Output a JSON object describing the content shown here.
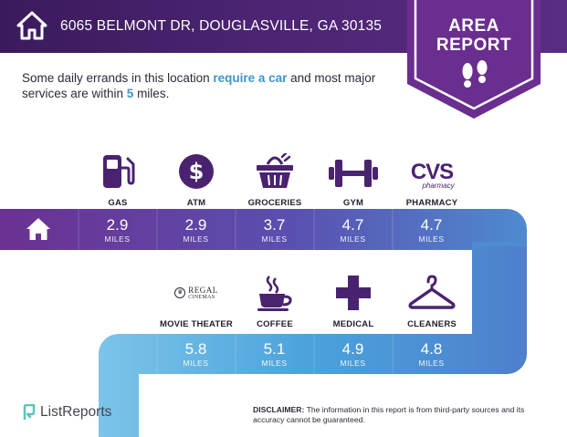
{
  "header": {
    "address": "6065 BELMONT DR, DOUGLASVILLE, GA 30135",
    "badge_line1": "AREA",
    "badge_line2": "REPORT"
  },
  "intro": {
    "part1": "Some daily errands in this location ",
    "highlight1": "require a car",
    "part2": " and most major services are within ",
    "highlight2": "5",
    "part3": " miles."
  },
  "row1": [
    {
      "label": "GAS",
      "icon": "gas-pump-icon",
      "distance": "2.9",
      "unit": "MILES"
    },
    {
      "label": "ATM",
      "icon": "dollar-icon",
      "distance": "2.9",
      "unit": "MILES"
    },
    {
      "label": "GROCERIES",
      "icon": "grocery-basket-icon",
      "distance": "3.7",
      "unit": "MILES"
    },
    {
      "label": "GYM",
      "icon": "dumbbell-icon",
      "distance": "4.7",
      "unit": "MILES"
    },
    {
      "label": "PHARMACY",
      "icon": "cvs-pharmacy-logo",
      "distance": "4.7",
      "unit": "MILES"
    }
  ],
  "row2": [
    {
      "label": "MOVIE THEATER",
      "icon": "regal-cinemas-logo",
      "distance": "5.8",
      "unit": "MILES"
    },
    {
      "label": "COFFEE",
      "icon": "coffee-cup-icon",
      "distance": "5.1",
      "unit": "MILES"
    },
    {
      "label": "MEDICAL",
      "icon": "medical-cross-icon",
      "distance": "4.9",
      "unit": "MILES"
    },
    {
      "label": "CLEANERS",
      "icon": "hanger-icon",
      "distance": "4.8",
      "unit": "MILES"
    }
  ],
  "logos": {
    "cvs_line1": "CVS",
    "cvs_line2": "pharmacy",
    "regal_line1": "REGAL",
    "regal_line2": "CINEMAS"
  },
  "footer": {
    "brand": "ListReports",
    "disclaimer_label": "DISCLAIMER:",
    "disclaimer_text": " The information in this report is from third-party sources and its accuracy cannot be guaranteed."
  },
  "colors": {
    "header_purple": "#4a2370",
    "badge_purple": "#6a2e8e",
    "highlight_blue": "#3a97c9",
    "row1_start": "#6b3190",
    "row1_end": "#4e8bd0",
    "row2_end": "#7cc4e8",
    "icon_purple": "#4a2370"
  }
}
